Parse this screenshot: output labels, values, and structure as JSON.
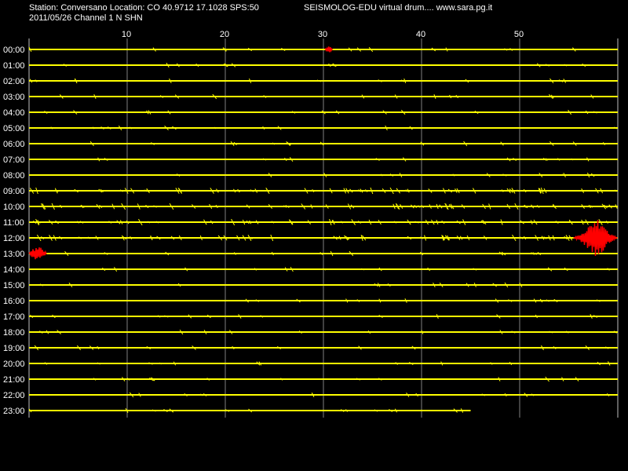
{
  "header": {
    "station_line": "Station: Conversano Location: CO 40.9712 17.1028 SPS:50",
    "app_line": "SEISMOLOG-EDU virtual drum.... www.sara.pg.it",
    "date_line": "2011/05/26  Channel 1 N SHN"
  },
  "chart_data": {
    "type": "line",
    "title": "",
    "xlabel": "",
    "ylabel": "",
    "x_unit_ticks": [
      10,
      20,
      30,
      40,
      50
    ],
    "xlim": [
      0,
      60
    ],
    "grid": true,
    "rows": [
      "00:00",
      "01:00",
      "02:00",
      "03:00",
      "04:00",
      "05:00",
      "06:00",
      "07:00",
      "08:00",
      "09:00",
      "10:00",
      "11:00",
      "12:00",
      "13:00",
      "14:00",
      "15:00",
      "16:00",
      "17:00",
      "18:00",
      "19:00",
      "20:00",
      "21:00",
      "22:00",
      "23:00"
    ],
    "trace_end_minute_last_row": 45,
    "events": [
      {
        "row": "00:00",
        "minute": 30.5,
        "amplitude": "small"
      },
      {
        "row": "12:00",
        "minute": 58,
        "amplitude": "large"
      },
      {
        "row": "13:00",
        "minute": 0.5,
        "amplitude": "medium"
      }
    ],
    "colors": {
      "trace": "#ffff00",
      "event": "#ff0000",
      "grid": "#808080",
      "background": "#000000"
    }
  }
}
